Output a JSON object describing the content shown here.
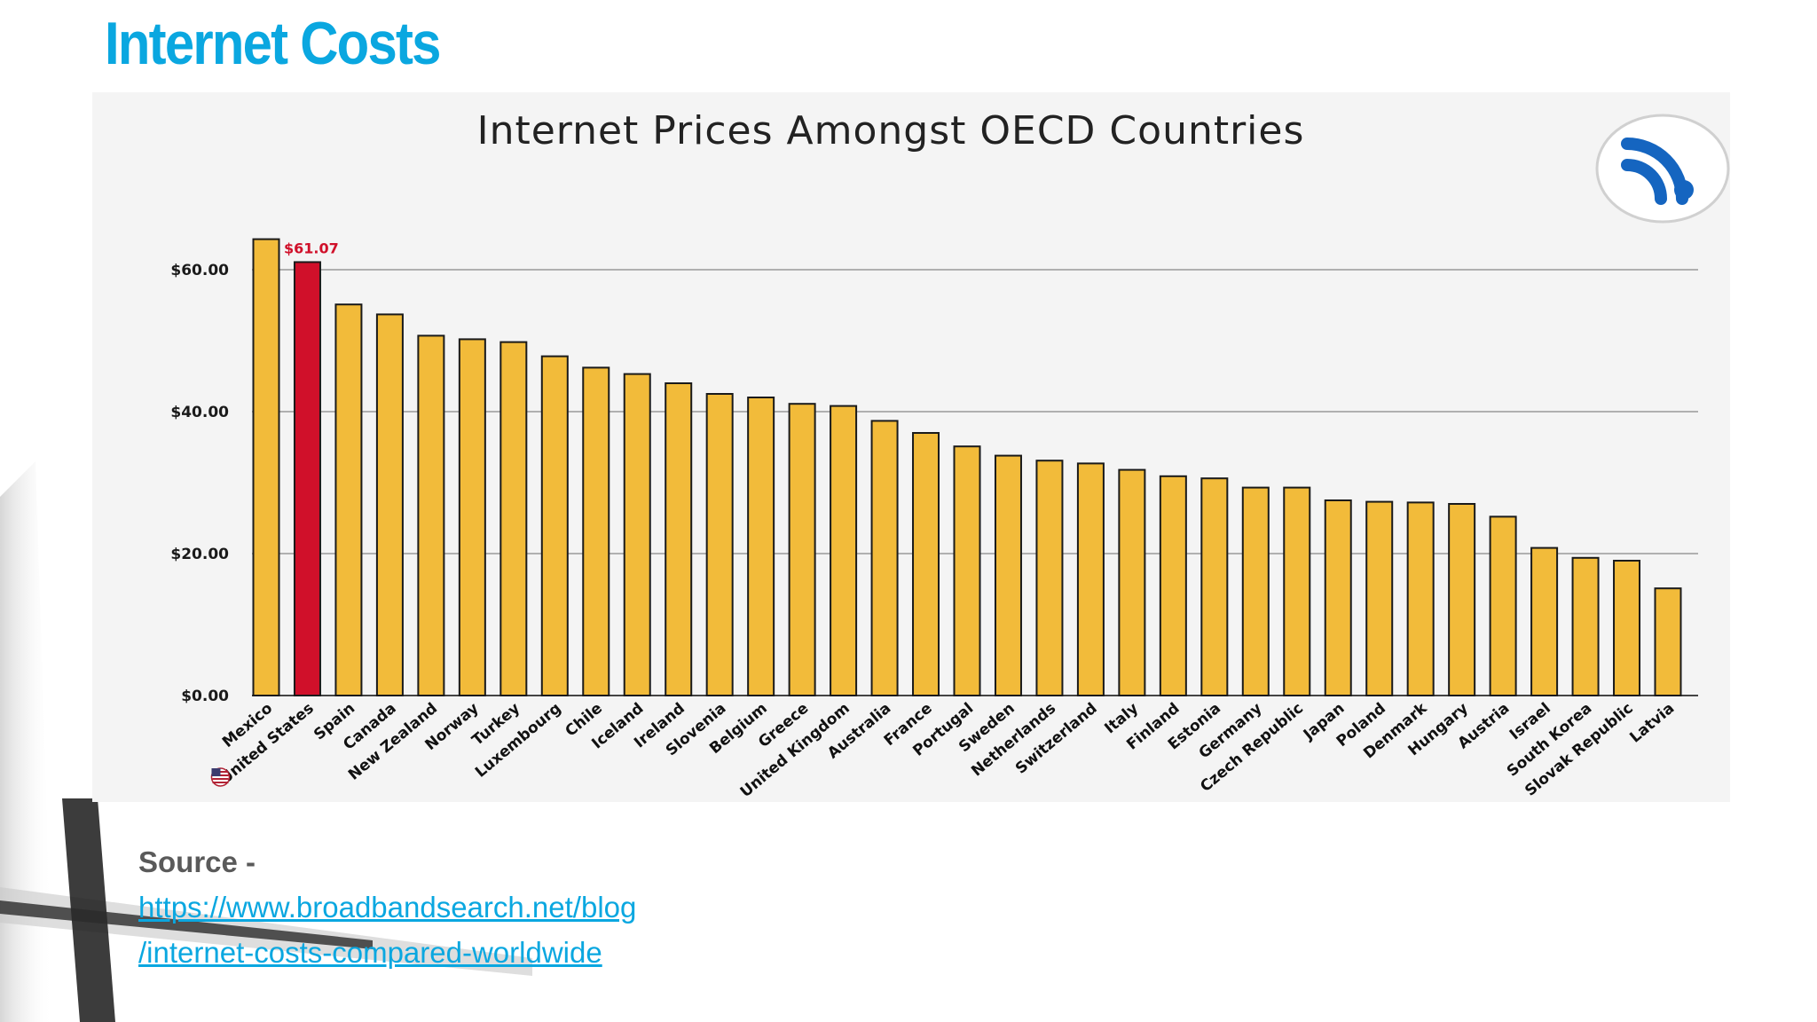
{
  "slide": {
    "title": "Internet Costs",
    "source_label": "Source -",
    "source_link_line1": "https://www.broadbandsearch.net/blog",
    "source_link_line2": "/internet-costs-compared-worldwide"
  },
  "colors": {
    "title": "#0aa7e0",
    "bar": "#f2bb3a",
    "highlight_bar": "#d0102a",
    "link": "#0aa7e0",
    "logo": "#1565c0"
  },
  "logo_icon": "wifi-icon",
  "chart_data": {
    "type": "bar",
    "title": "Internet Prices Amongst OECD Countries",
    "xlabel": "",
    "ylabel": "",
    "ylim": [
      0,
      64
    ],
    "yticks": [
      "$0.00",
      "$20.00",
      "$40.00",
      "$60.00"
    ],
    "ytick_values": [
      0,
      20,
      40,
      60
    ],
    "grid": true,
    "highlight": {
      "category": "United States",
      "label": "$61.07",
      "flag_icon": "us-flag-icon"
    },
    "categories": [
      "Mexico",
      "United States",
      "Spain",
      "Canada",
      "New Zealand",
      "Norway",
      "Turkey",
      "Luxembourg",
      "Chile",
      "Iceland",
      "Ireland",
      "Slovenia",
      "Belgium",
      "Greece",
      "United Kingdom",
      "Australia",
      "France",
      "Portugal",
      "Sweden",
      "Netherlands",
      "Switzerland",
      "Italy",
      "Finland",
      "Estonia",
      "Germany",
      "Czech Republic",
      "Japan",
      "Poland",
      "Denmark",
      "Hungary",
      "Austria",
      "Israel",
      "South Korea",
      "Slovak Republic",
      "Latvia"
    ],
    "values": [
      64.3,
      61.07,
      55.1,
      53.7,
      50.7,
      50.2,
      49.8,
      47.8,
      46.2,
      45.3,
      44.0,
      42.5,
      42.0,
      41.1,
      40.8,
      38.7,
      37.0,
      35.1,
      33.8,
      33.1,
      32.7,
      31.8,
      30.9,
      30.6,
      29.3,
      29.3,
      27.5,
      27.3,
      27.2,
      27.0,
      25.2,
      20.8,
      19.4,
      19.0,
      15.1
    ]
  }
}
